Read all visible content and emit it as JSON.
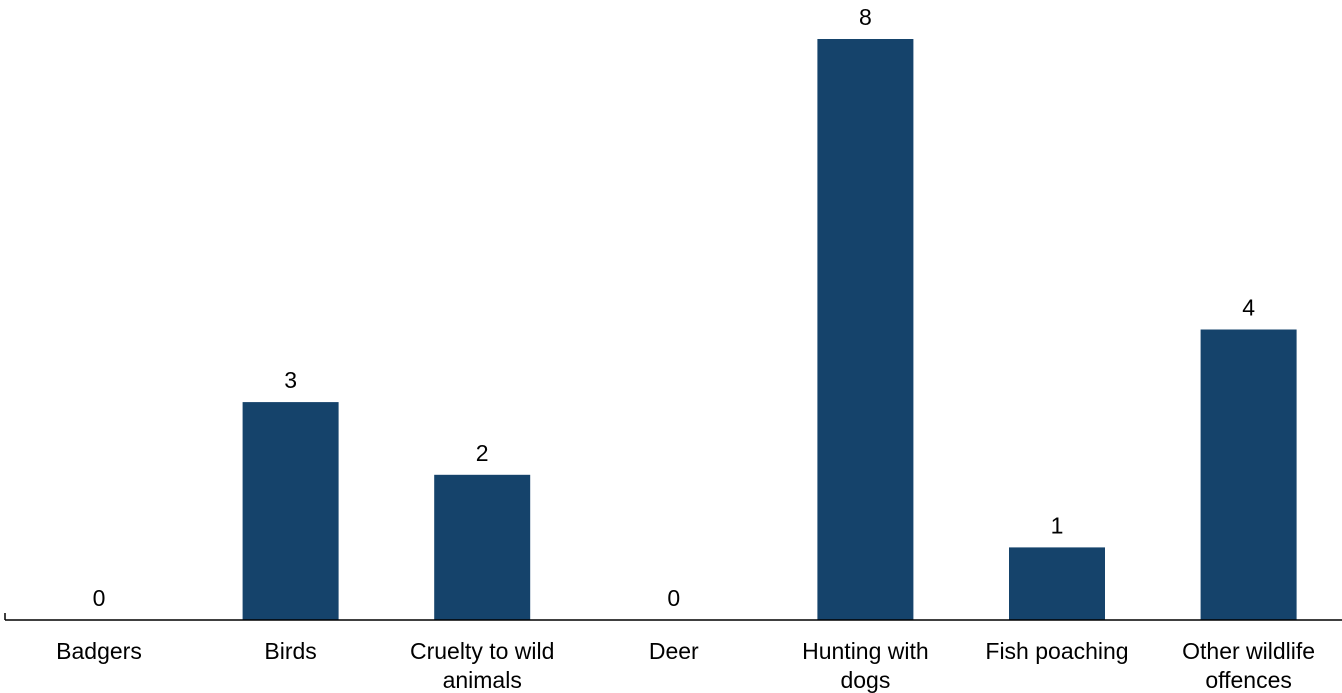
{
  "chart_data": {
    "type": "bar",
    "categories": [
      [
        "Badgers"
      ],
      [
        "Birds"
      ],
      [
        "Cruelty to wild",
        "animals"
      ],
      [
        "Deer"
      ],
      [
        "Hunting with",
        "dogs"
      ],
      [
        "Fish poaching"
      ],
      [
        "Other wildlife",
        "offences"
      ]
    ],
    "values": [
      0,
      3,
      2,
      0,
      8,
      1,
      4
    ],
    "data_labels": [
      "0",
      "3",
      "2",
      "0",
      "8",
      "1",
      "4"
    ],
    "ylim": [
      0,
      8
    ],
    "grid": false,
    "legend": "none",
    "bar_color": "#15436b",
    "axis_color": "#000000",
    "text_color": "#000000"
  }
}
